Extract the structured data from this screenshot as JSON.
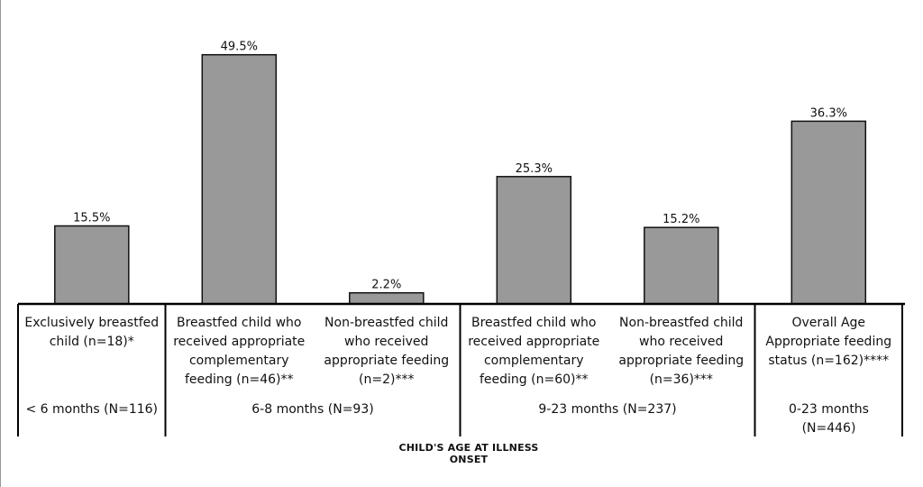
{
  "chart_data": {
    "type": "bar",
    "categories": [
      [
        "Exclusively breastfed",
        "child (n=18)*"
      ],
      [
        "Breastfed child who",
        "received appropriate",
        "complementary",
        "feeding (n=46)**"
      ],
      [
        "Non-breastfed child",
        "who received",
        "appropriate feeding",
        "(n=2)***"
      ],
      [
        "Breastfed child who",
        "received appropriate",
        "complementary",
        "feeding (n=60)**"
      ],
      [
        "Non-breastfed child",
        "who received",
        "appropriate feeding",
        "(n=36)***"
      ],
      [
        "Overall Age",
        "Appropriate feeding",
        "status (n=162)****"
      ]
    ],
    "values": [
      15.5,
      49.5,
      2.2,
      25.3,
      15.2,
      36.3
    ],
    "data_labels": [
      "15.5%",
      "49.5%",
      "2.2%",
      "25.3%",
      "15.2%",
      "36.3%"
    ],
    "groups": [
      {
        "label": "< 6 months (N=116)",
        "categories": [
          0
        ]
      },
      {
        "label": "6-8 months (N=93)",
        "categories": [
          1,
          2
        ]
      },
      {
        "label": "9-23 months (N=237)",
        "categories": [
          3,
          4
        ]
      },
      {
        "label": "0-23 months (N=446)",
        "categories": [
          5
        ]
      }
    ],
    "xlabel": "CHILD'S AGE AT ILLNESS ONSET",
    "ylabel": "",
    "ylim": [
      0,
      55
    ],
    "grid": false,
    "colors": {
      "bar": "#999999",
      "bar_stroke": "#111111",
      "axis": "#000000"
    }
  }
}
